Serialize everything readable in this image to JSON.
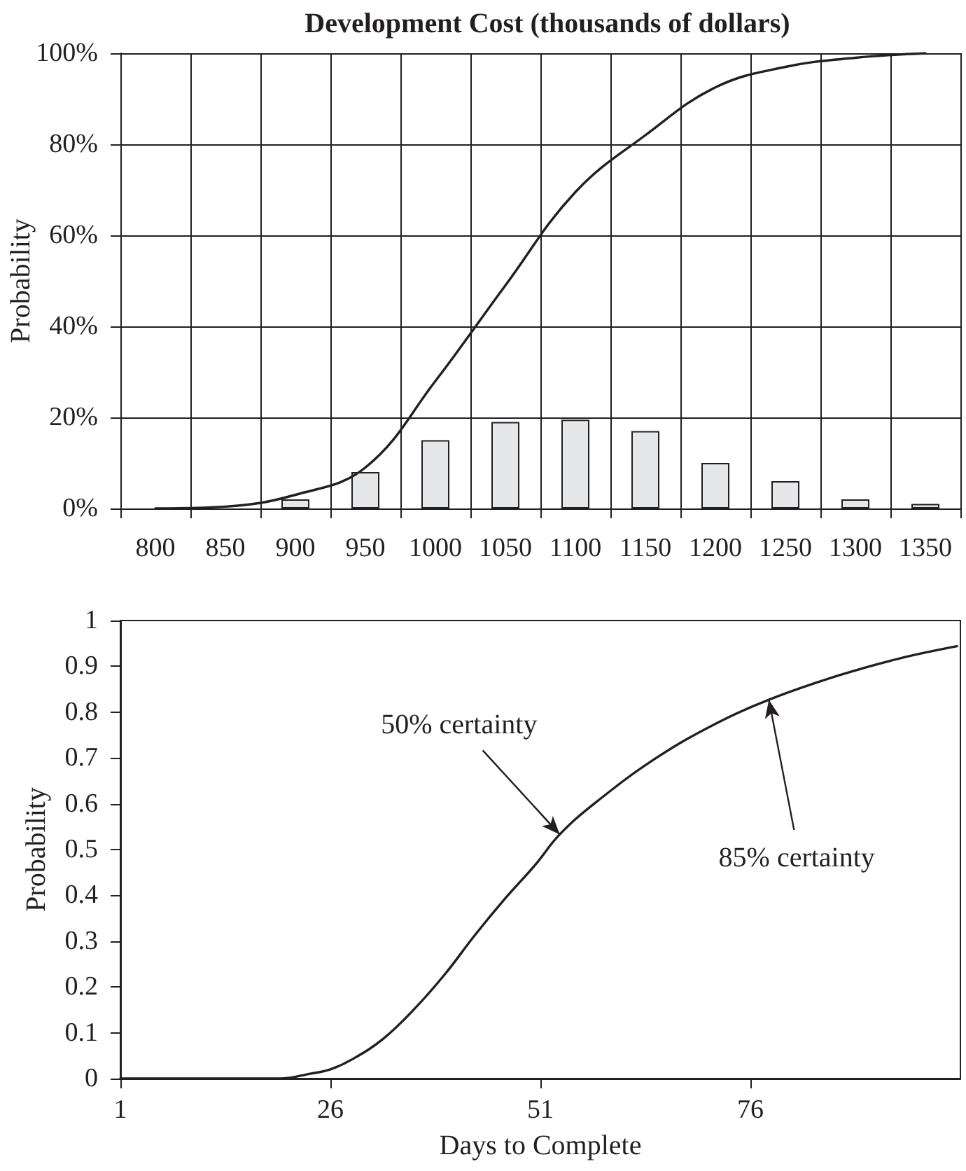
{
  "chart_data": [
    {
      "type": "bar",
      "title": "Development Cost (thousands of dollars)",
      "ylabel": "Probability",
      "categories": [
        "800",
        "850",
        "900",
        "950",
        "1000",
        "1050",
        "1100",
        "1150",
        "1200",
        "1250",
        "1300",
        "1350"
      ],
      "series": [
        {
          "color": "#e6e7e8",
          "values": [
            null,
            null,
            2,
            8,
            15,
            19,
            19.5,
            17,
            10,
            6,
            2,
            1
          ]
        },
        {
          "type": "line",
          "color": "#231f20",
          "values": [
            0,
            0.4,
            3,
            9,
            28,
            49,
            69.5,
            82,
            92.5,
            97,
            99,
            100
          ]
        }
      ],
      "ylim": [
        0,
        100
      ],
      "yticks": [
        {
          "value": 0,
          "label": "0%"
        },
        {
          "value": 20,
          "label": "20%"
        },
        {
          "value": 40,
          "label": "40%"
        },
        {
          "value": 60,
          "label": "60%"
        },
        {
          "value": 80,
          "label": "80%"
        },
        {
          "value": 100,
          "label": "100%"
        }
      ],
      "grid": true,
      "marker": "none"
    },
    {
      "type": "line",
      "xlabel": "Days to Complete",
      "ylabel": "Probability",
      "x": [
        1,
        10,
        20,
        23.7,
        26,
        28.7,
        32.3,
        35.9,
        39.6,
        43.2,
        46.8,
        50.4,
        53.3,
        57.6,
        64.8,
        72,
        78.2,
        86.5,
        93.7,
        100.6
      ],
      "series": [
        {
          "color": "#231f20",
          "values": [
            0,
            0,
            0,
            0.011,
            0.02,
            0.043,
            0.087,
            0.15,
            0.227,
            0.313,
            0.393,
            0.467,
            0.533,
            0.603,
            0.7,
            0.776,
            0.827,
            0.88,
            0.917,
            0.944
          ]
        }
      ],
      "xlim": [
        1,
        101
      ],
      "xticks": [
        1,
        26,
        51,
        76
      ],
      "ylim": [
        0,
        1
      ],
      "yticks": [
        0,
        0.1,
        0.2,
        0.3,
        0.4,
        0.5,
        0.6,
        0.7,
        0.8,
        0.9,
        1
      ],
      "marker": "none",
      "annotations": [
        {
          "text": "50% certainty",
          "x": 53.3,
          "y": 0.533
        },
        {
          "text": "85% certainty",
          "x": 78.2,
          "y": 0.827
        }
      ]
    }
  ]
}
